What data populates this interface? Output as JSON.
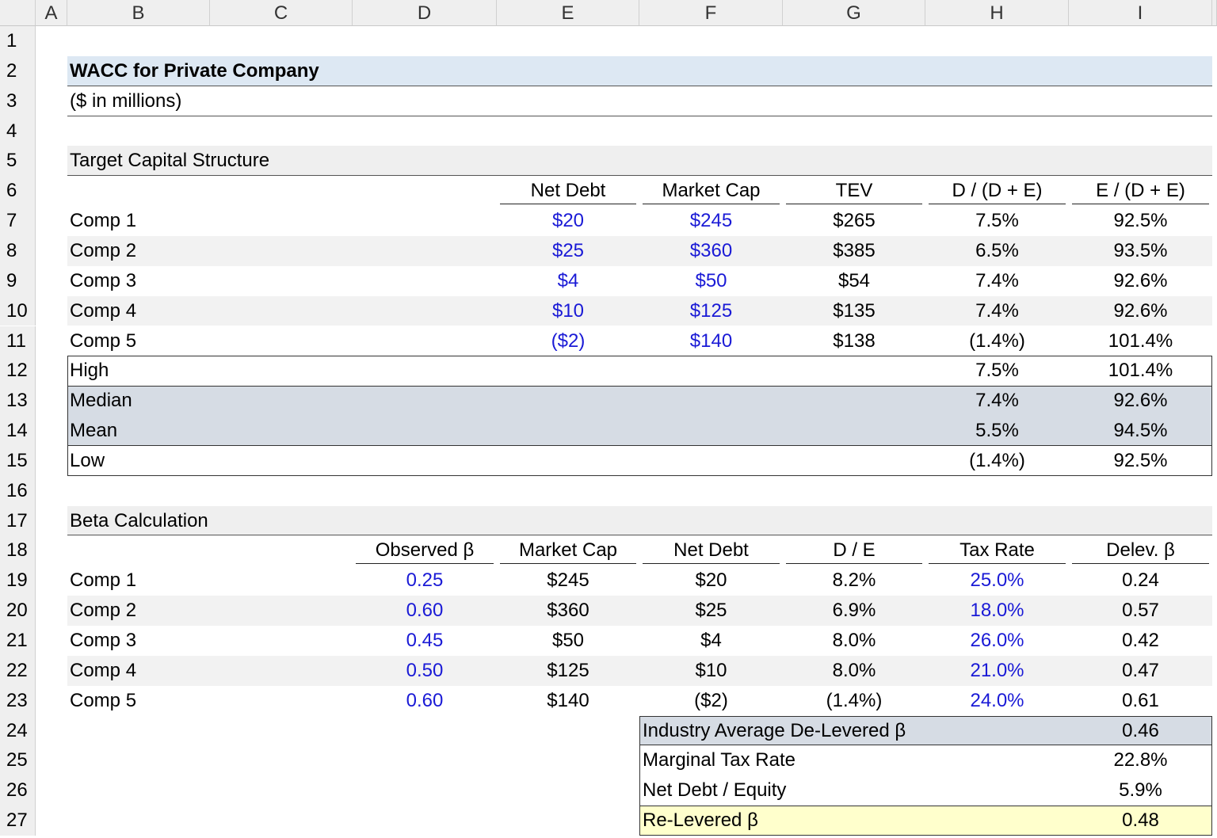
{
  "column_headers": [
    "A",
    "B",
    "C",
    "D",
    "E",
    "F",
    "G",
    "H",
    "I"
  ],
  "row_numbers": [
    1,
    2,
    3,
    4,
    5,
    6,
    7,
    8,
    9,
    10,
    11,
    12,
    13,
    14,
    15,
    16,
    17,
    18,
    19,
    20,
    21,
    22,
    23,
    24,
    25,
    26,
    27
  ],
  "title": "WACC for Private Company",
  "subtitle": "($ in millions)",
  "capital_structure": {
    "heading": "Target Capital Structure",
    "columns": [
      "Net Debt",
      "Market Cap",
      "TEV",
      "D / (D + E)",
      "E / (D + E)"
    ],
    "rows": [
      {
        "label": "Comp 1",
        "values": [
          "$20",
          "$245",
          "$265",
          "7.5%",
          "92.5%"
        ]
      },
      {
        "label": "Comp 2",
        "values": [
          "$25",
          "$360",
          "$385",
          "6.5%",
          "93.5%"
        ]
      },
      {
        "label": "Comp 3",
        "values": [
          "$4",
          "$50",
          "$54",
          "7.4%",
          "92.6%"
        ]
      },
      {
        "label": "Comp 4",
        "values": [
          "$10",
          "$125",
          "$135",
          "7.4%",
          "92.6%"
        ]
      },
      {
        "label": "Comp 5",
        "values": [
          "($2)",
          "$140",
          "$138",
          "(1.4%)",
          "101.4%"
        ]
      }
    ],
    "stats": [
      {
        "label": "High",
        "values": [
          "7.5%",
          "101.4%"
        ]
      },
      {
        "label": "Median",
        "values": [
          "7.4%",
          "92.6%"
        ]
      },
      {
        "label": "Mean",
        "values": [
          "5.5%",
          "94.5%"
        ]
      },
      {
        "label": "Low",
        "values": [
          "(1.4%)",
          "92.5%"
        ]
      }
    ]
  },
  "beta_calculation": {
    "heading": "Beta Calculation",
    "columns": [
      "Observed β",
      "Market Cap",
      "Net Debt",
      "D / E",
      "Tax Rate",
      "Delev. β"
    ],
    "rows": [
      {
        "label": "Comp 1",
        "values": [
          "0.25",
          "$245",
          "$20",
          "8.2%",
          "25.0%",
          "0.24"
        ]
      },
      {
        "label": "Comp 2",
        "values": [
          "0.60",
          "$360",
          "$25",
          "6.9%",
          "18.0%",
          "0.57"
        ]
      },
      {
        "label": "Comp 3",
        "values": [
          "0.45",
          "$50",
          "$4",
          "8.0%",
          "26.0%",
          "0.42"
        ]
      },
      {
        "label": "Comp 4",
        "values": [
          "0.50",
          "$125",
          "$10",
          "8.0%",
          "21.0%",
          "0.47"
        ]
      },
      {
        "label": "Comp 5",
        "values": [
          "0.60",
          "$140",
          "($2)",
          "(1.4%)",
          "24.0%",
          "0.61"
        ]
      }
    ],
    "summary": [
      {
        "label": "Industry Average De-Levered β",
        "value": "0.46"
      },
      {
        "label": "Marginal Tax Rate",
        "value": "22.8%"
      },
      {
        "label": "Net Debt / Equity",
        "value": "5.9%"
      },
      {
        "label": "Re-Levered β",
        "value": "0.48"
      }
    ]
  }
}
